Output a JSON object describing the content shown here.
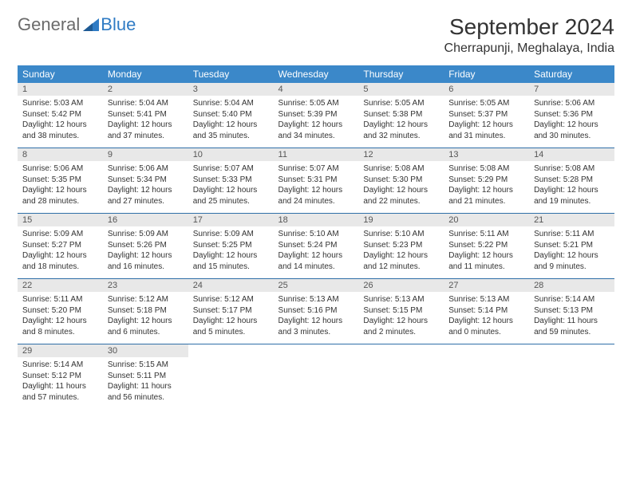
{
  "logo": {
    "text1": "General",
    "text2": "Blue"
  },
  "title": "September 2024",
  "location": "Cherrapunji, Meghalaya, India",
  "colors": {
    "header_bg": "#3b88c9",
    "header_text": "#ffffff",
    "daynum_bg": "#e8e8e8",
    "separator": "#2f6fa8",
    "logo_gray": "#6b6b6b",
    "logo_blue": "#2f7bc4"
  },
  "day_headers": [
    "Sunday",
    "Monday",
    "Tuesday",
    "Wednesday",
    "Thursday",
    "Friday",
    "Saturday"
  ],
  "weeks": [
    [
      {
        "n": "1",
        "sr": "5:03 AM",
        "ss": "5:42 PM",
        "dl": "12 hours and 38 minutes."
      },
      {
        "n": "2",
        "sr": "5:04 AM",
        "ss": "5:41 PM",
        "dl": "12 hours and 37 minutes."
      },
      {
        "n": "3",
        "sr": "5:04 AM",
        "ss": "5:40 PM",
        "dl": "12 hours and 35 minutes."
      },
      {
        "n": "4",
        "sr": "5:05 AM",
        "ss": "5:39 PM",
        "dl": "12 hours and 34 minutes."
      },
      {
        "n": "5",
        "sr": "5:05 AM",
        "ss": "5:38 PM",
        "dl": "12 hours and 32 minutes."
      },
      {
        "n": "6",
        "sr": "5:05 AM",
        "ss": "5:37 PM",
        "dl": "12 hours and 31 minutes."
      },
      {
        "n": "7",
        "sr": "5:06 AM",
        "ss": "5:36 PM",
        "dl": "12 hours and 30 minutes."
      }
    ],
    [
      {
        "n": "8",
        "sr": "5:06 AM",
        "ss": "5:35 PM",
        "dl": "12 hours and 28 minutes."
      },
      {
        "n": "9",
        "sr": "5:06 AM",
        "ss": "5:34 PM",
        "dl": "12 hours and 27 minutes."
      },
      {
        "n": "10",
        "sr": "5:07 AM",
        "ss": "5:33 PM",
        "dl": "12 hours and 25 minutes."
      },
      {
        "n": "11",
        "sr": "5:07 AM",
        "ss": "5:31 PM",
        "dl": "12 hours and 24 minutes."
      },
      {
        "n": "12",
        "sr": "5:08 AM",
        "ss": "5:30 PM",
        "dl": "12 hours and 22 minutes."
      },
      {
        "n": "13",
        "sr": "5:08 AM",
        "ss": "5:29 PM",
        "dl": "12 hours and 21 minutes."
      },
      {
        "n": "14",
        "sr": "5:08 AM",
        "ss": "5:28 PM",
        "dl": "12 hours and 19 minutes."
      }
    ],
    [
      {
        "n": "15",
        "sr": "5:09 AM",
        "ss": "5:27 PM",
        "dl": "12 hours and 18 minutes."
      },
      {
        "n": "16",
        "sr": "5:09 AM",
        "ss": "5:26 PM",
        "dl": "12 hours and 16 minutes."
      },
      {
        "n": "17",
        "sr": "5:09 AM",
        "ss": "5:25 PM",
        "dl": "12 hours and 15 minutes."
      },
      {
        "n": "18",
        "sr": "5:10 AM",
        "ss": "5:24 PM",
        "dl": "12 hours and 14 minutes."
      },
      {
        "n": "19",
        "sr": "5:10 AM",
        "ss": "5:23 PM",
        "dl": "12 hours and 12 minutes."
      },
      {
        "n": "20",
        "sr": "5:11 AM",
        "ss": "5:22 PM",
        "dl": "12 hours and 11 minutes."
      },
      {
        "n": "21",
        "sr": "5:11 AM",
        "ss": "5:21 PM",
        "dl": "12 hours and 9 minutes."
      }
    ],
    [
      {
        "n": "22",
        "sr": "5:11 AM",
        "ss": "5:20 PM",
        "dl": "12 hours and 8 minutes."
      },
      {
        "n": "23",
        "sr": "5:12 AM",
        "ss": "5:18 PM",
        "dl": "12 hours and 6 minutes."
      },
      {
        "n": "24",
        "sr": "5:12 AM",
        "ss": "5:17 PM",
        "dl": "12 hours and 5 minutes."
      },
      {
        "n": "25",
        "sr": "5:13 AM",
        "ss": "5:16 PM",
        "dl": "12 hours and 3 minutes."
      },
      {
        "n": "26",
        "sr": "5:13 AM",
        "ss": "5:15 PM",
        "dl": "12 hours and 2 minutes."
      },
      {
        "n": "27",
        "sr": "5:13 AM",
        "ss": "5:14 PM",
        "dl": "12 hours and 0 minutes."
      },
      {
        "n": "28",
        "sr": "5:14 AM",
        "ss": "5:13 PM",
        "dl": "11 hours and 59 minutes."
      }
    ],
    [
      {
        "n": "29",
        "sr": "5:14 AM",
        "ss": "5:12 PM",
        "dl": "11 hours and 57 minutes."
      },
      {
        "n": "30",
        "sr": "5:15 AM",
        "ss": "5:11 PM",
        "dl": "11 hours and 56 minutes."
      },
      null,
      null,
      null,
      null,
      null
    ]
  ],
  "labels": {
    "sunrise": "Sunrise:",
    "sunset": "Sunset:",
    "daylight": "Daylight:"
  }
}
